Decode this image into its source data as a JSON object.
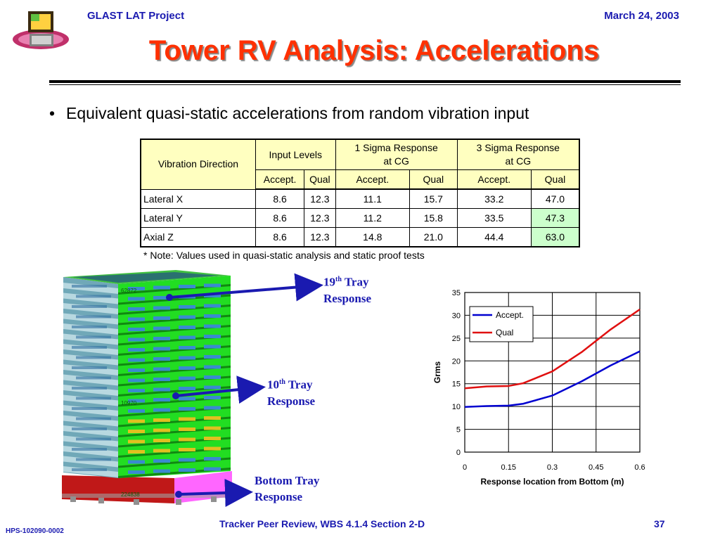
{
  "header": {
    "project": "GLAST LAT Project",
    "date": "March 24, 2003"
  },
  "title": "Tower RV Analysis: Accelerations",
  "bullet": "Equivalent quasi-static accelerations from random vibration input",
  "table": {
    "col_direction": "Vibration Direction",
    "col_input": "Input Levels",
    "col_1sigma_a": "1 Sigma Response",
    "col_1sigma_b": "at CG",
    "col_3sigma_a": "3 Sigma Response",
    "col_3sigma_b": "at CG",
    "sub": [
      "Accept.",
      "Qual",
      "Accept.",
      "Qual",
      "Accept.",
      "Qual"
    ],
    "rows": [
      {
        "label": "Lateral X",
        "values": [
          "8.6",
          "12.3",
          "11.1",
          "15.7",
          "33.2",
          "47.0"
        ]
      },
      {
        "label": "Lateral Y",
        "values": [
          "8.6",
          "12.3",
          "11.2",
          "15.8",
          "33.5",
          "47.3"
        ]
      },
      {
        "label": "Axial Z",
        "values": [
          "8.6",
          "12.3",
          "14.8",
          "21.0",
          "44.4",
          "63.0"
        ]
      }
    ],
    "highlight_color": "#ccffcc"
  },
  "note": "* Note: Values used in quasi-static analysis and static proof tests",
  "tower_labels": {
    "t19_num": "19",
    "t19_sup": "th",
    "t19_word": "Tray",
    "t19_resp": "Response",
    "t10_num": "10",
    "t10_sup": "th",
    "t10_word": "Tray",
    "t10_resp": "Response",
    "bottom_a": "Bottom Tray",
    "bottom_b": "Response"
  },
  "model_node_ids": [
    "62872",
    "10970",
    "224838"
  ],
  "chart_data": {
    "type": "line",
    "xlabel": "Response location from Bottom (m)",
    "ylabel": "Grms",
    "xlim": [
      0,
      0.6
    ],
    "ylim": [
      0,
      35
    ],
    "xticks": [
      "0",
      "0.15",
      "0.3",
      "0.45",
      "0.6"
    ],
    "yticks": [
      "0",
      "5",
      "10",
      "15",
      "20",
      "25",
      "30",
      "35"
    ],
    "grid": true,
    "legend_position": "top-left",
    "series": [
      {
        "name": "Accept.",
        "color": "#0000d0",
        "x": [
          0,
          0.075,
          0.15,
          0.2,
          0.3,
          0.4,
          0.5,
          0.6
        ],
        "y": [
          9.9,
          10.1,
          10.2,
          10.6,
          12.4,
          15.5,
          19.0,
          22.1
        ]
      },
      {
        "name": "Qual",
        "color": "#e01010",
        "x": [
          0,
          0.075,
          0.15,
          0.2,
          0.3,
          0.4,
          0.5,
          0.6
        ],
        "y": [
          14.0,
          14.4,
          14.5,
          15.1,
          17.7,
          21.9,
          26.9,
          31.3
        ]
      }
    ]
  },
  "footer": {
    "doc_id": "HPS-102090-0002",
    "center": "Tracker Peer Review, WBS 4.1.4 Section 2-D",
    "page": "37"
  }
}
